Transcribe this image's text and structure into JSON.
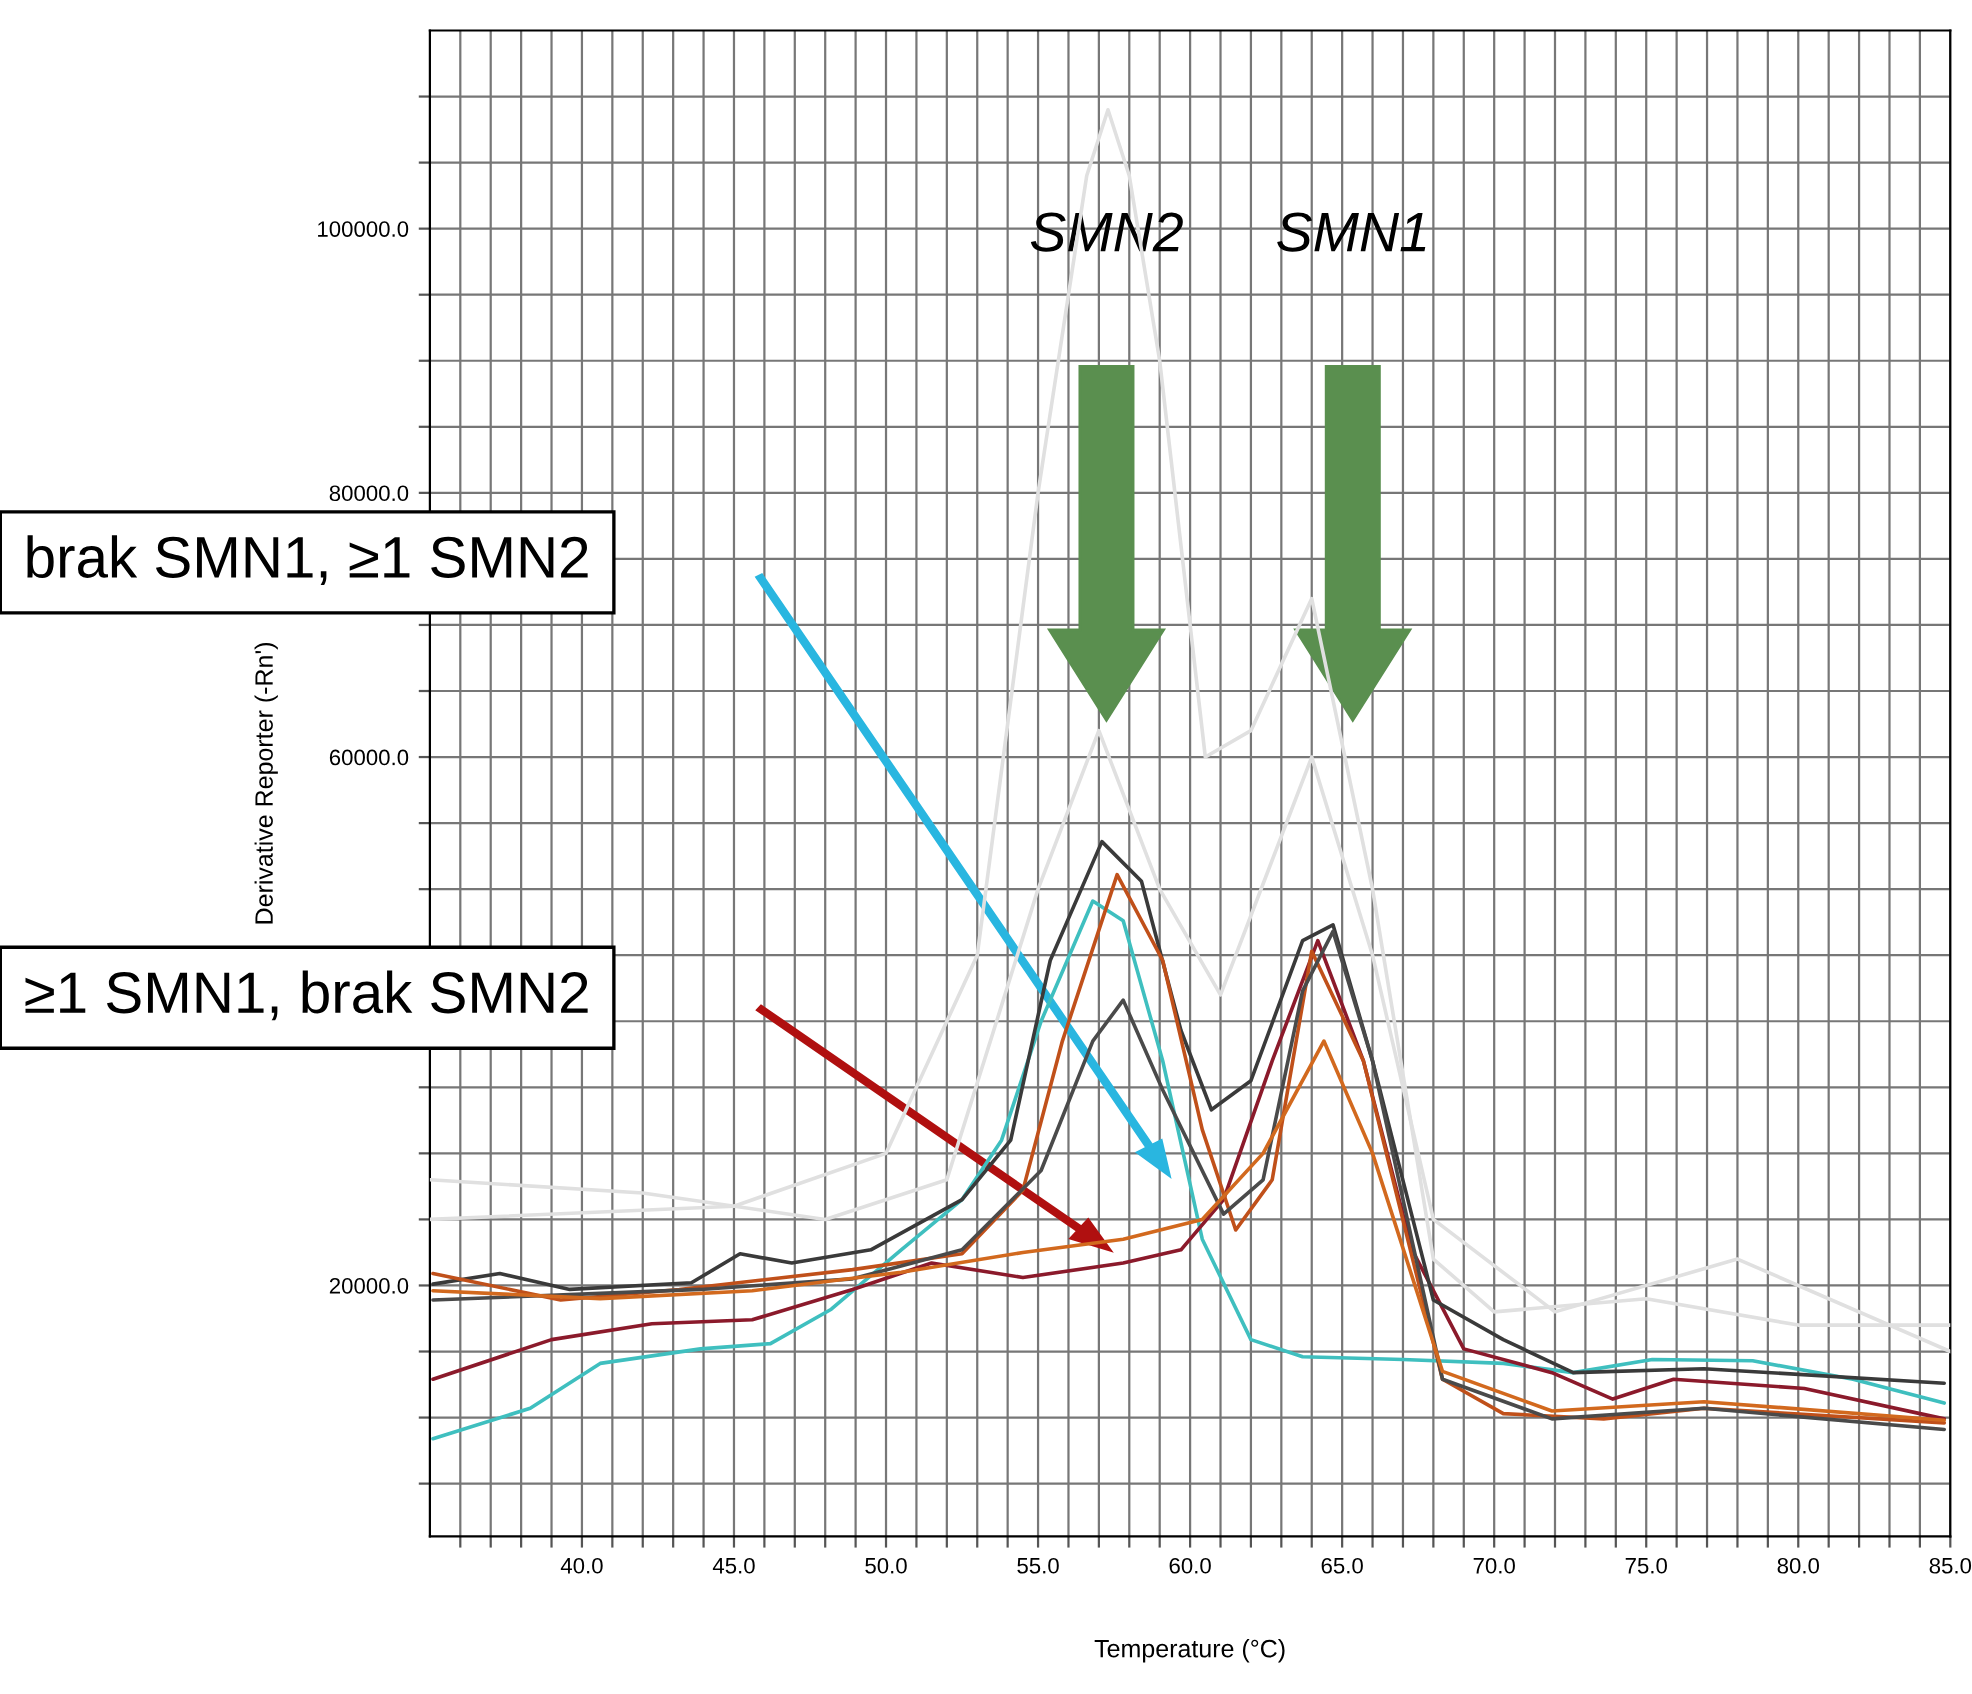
{
  "chart_data": {
    "type": "line",
    "xlabel": "Temperature (°C)",
    "ylabel": "Derivative Reporter (-Rn')",
    "xlim": [
      35,
      85
    ],
    "ylim": [
      1000,
      115000
    ],
    "xticks": [
      {
        "value": 36,
        "label": null
      },
      {
        "value": 37,
        "label": null
      },
      {
        "value": 38,
        "label": null
      },
      {
        "value": 39,
        "label": null
      },
      {
        "value": 40,
        "label": "40.0"
      },
      {
        "value": 41,
        "label": null
      },
      {
        "value": 42,
        "label": null
      },
      {
        "value": 43,
        "label": null
      },
      {
        "value": 44,
        "label": null
      },
      {
        "value": 45,
        "label": "45.0"
      },
      {
        "value": 46,
        "label": null
      },
      {
        "value": 47,
        "label": null
      },
      {
        "value": 48,
        "label": null
      },
      {
        "value": 49,
        "label": null
      },
      {
        "value": 50,
        "label": "50.0"
      },
      {
        "value": 51,
        "label": null
      },
      {
        "value": 52,
        "label": null
      },
      {
        "value": 53,
        "label": null
      },
      {
        "value": 54,
        "label": null
      },
      {
        "value": 55,
        "label": "55.0"
      },
      {
        "value": 56,
        "label": null
      },
      {
        "value": 57,
        "label": null
      },
      {
        "value": 58,
        "label": null
      },
      {
        "value": 59,
        "label": null
      },
      {
        "value": 60,
        "label": "60.0"
      },
      {
        "value": 61,
        "label": null
      },
      {
        "value": 62,
        "label": null
      },
      {
        "value": 63,
        "label": null
      },
      {
        "value": 64,
        "label": null
      },
      {
        "value": 65,
        "label": "65.0"
      },
      {
        "value": 66,
        "label": null
      },
      {
        "value": 67,
        "label": null
      },
      {
        "value": 68,
        "label": null
      },
      {
        "value": 69,
        "label": null
      },
      {
        "value": 70,
        "label": "70.0"
      },
      {
        "value": 71,
        "label": null
      },
      {
        "value": 72,
        "label": null
      },
      {
        "value": 73,
        "label": null
      },
      {
        "value": 74,
        "label": null
      },
      {
        "value": 75,
        "label": "75.0"
      },
      {
        "value": 76,
        "label": null
      },
      {
        "value": 77,
        "label": null
      },
      {
        "value": 78,
        "label": null
      },
      {
        "value": 79,
        "label": null
      },
      {
        "value": 80,
        "label": "80.0"
      },
      {
        "value": 81,
        "label": null
      },
      {
        "value": 82,
        "label": null
      },
      {
        "value": 83,
        "label": null
      },
      {
        "value": 84,
        "label": null
      },
      {
        "value": 85,
        "label": "85.0"
      }
    ],
    "yticks": [
      {
        "value": 5000,
        "label": null
      },
      {
        "value": 10000,
        "label": null
      },
      {
        "value": 15000,
        "label": null
      },
      {
        "value": 20000,
        "label": "20000.0"
      },
      {
        "value": 25000,
        "label": null
      },
      {
        "value": 30000,
        "label": null
      },
      {
        "value": 35000,
        "label": null
      },
      {
        "value": 40000,
        "label": null
      },
      {
        "value": 45000,
        "label": null
      },
      {
        "value": 50000,
        "label": null
      },
      {
        "value": 55000,
        "label": null
      },
      {
        "value": 60000,
        "label": "60000.0"
      },
      {
        "value": 65000,
        "label": null
      },
      {
        "value": 70000,
        "label": null
      },
      {
        "value": 75000,
        "label": null
      },
      {
        "value": 80000,
        "label": "80000.0"
      },
      {
        "value": 85000,
        "label": null
      },
      {
        "value": 90000,
        "label": null
      },
      {
        "value": 95000,
        "label": null
      },
      {
        "value": 100000,
        "label": "100000.0"
      },
      {
        "value": 105000,
        "label": null
      },
      {
        "value": 110000,
        "label": null
      }
    ],
    "grid": true,
    "series": [
      {
        "color": "#e0e0e0",
        "x": [
          35,
          45,
          50,
          53,
          55,
          56.6,
          57.3,
          58,
          59,
          60.5,
          62,
          64,
          66,
          68,
          70,
          75,
          80,
          85
        ],
        "values": [
          25000,
          26000,
          30000,
          45000,
          80000,
          104000,
          109000,
          104000,
          90000,
          60000,
          62000,
          72000,
          50000,
          22000,
          18000,
          19000,
          17000,
          17000
        ]
      },
      {
        "color": "#e0e0e0",
        "x": [
          35,
          42,
          48,
          52,
          55,
          57,
          59,
          61,
          64,
          66,
          68,
          72,
          78,
          85
        ],
        "values": [
          28000,
          27000,
          25000,
          28000,
          50000,
          62000,
          50000,
          42000,
          60000,
          45000,
          25000,
          18000,
          22000,
          15000
        ]
      },
      {
        "color": "#3fbfbf",
        "x": [
          35.1,
          38.3,
          40.6,
          43.9,
          46.2,
          48.2,
          50.5,
          52.5,
          53.8,
          55.1,
          56.8,
          57.8,
          59.1,
          60.4,
          62.0,
          63.7,
          67.0,
          70.3,
          72.6,
          75.2,
          78.5,
          81.8,
          84.8
        ],
        "values": [
          8400,
          10700,
          14100,
          15200,
          15600,
          18200,
          22700,
          26500,
          31000,
          40000,
          49100,
          47600,
          37000,
          23500,
          15900,
          14600,
          14400,
          14100,
          13400,
          14400,
          14300,
          12900,
          11100
        ]
      },
      {
        "color": "#8b1a2b",
        "x": [
          35.1,
          39.0,
          42.3,
          45.6,
          48.9,
          51.5,
          54.5,
          57.8,
          59.7,
          61.1,
          62.7,
          64.2,
          65.7,
          67.3,
          69.0,
          71.9,
          73.9,
          75.9,
          80.2,
          84.8
        ],
        "values": [
          12900,
          15900,
          17100,
          17400,
          19700,
          21700,
          20600,
          21700,
          22700,
          26500,
          37000,
          46100,
          37000,
          22700,
          15200,
          13400,
          11400,
          12900,
          12200,
          9900
        ]
      },
      {
        "color": "#3a3a3a",
        "x": [
          35.1,
          37.3,
          39.6,
          43.6,
          45.2,
          46.9,
          49.5,
          52.5,
          54.1,
          55.4,
          57.1,
          58.4,
          59.7,
          60.7,
          62.0,
          63.7,
          64.7,
          66.0,
          68.0,
          70.3,
          72.6,
          76.9,
          84.8
        ],
        "values": [
          20100,
          20900,
          19700,
          20200,
          22400,
          21700,
          22700,
          26500,
          31000,
          44600,
          53600,
          50600,
          39300,
          33300,
          35500,
          46100,
          47300,
          37000,
          18900,
          15900,
          13400,
          13700,
          12600
        ]
      },
      {
        "color": "#c0501a",
        "x": [
          35.1,
          39.3,
          43.2,
          48.9,
          52.5,
          54.5,
          55.8,
          57.6,
          59.1,
          60.4,
          61.5,
          62.7,
          64.0,
          65.7,
          68.3,
          70.3,
          73.6,
          76.9,
          84.8
        ],
        "values": [
          20900,
          18900,
          19700,
          21200,
          22400,
          27200,
          38500,
          51100,
          44600,
          31800,
          24200,
          28000,
          45300,
          37000,
          12900,
          10300,
          9900,
          10700,
          9600
        ]
      },
      {
        "color": "#4a4a4a",
        "x": [
          35.1,
          40.6,
          43.9,
          48.9,
          52.5,
          55.1,
          56.8,
          57.8,
          59.1,
          61.1,
          62.4,
          63.7,
          64.7,
          66.0,
          68.3,
          71.9,
          76.9,
          84.8
        ],
        "values": [
          18900,
          19400,
          19700,
          20500,
          22700,
          28700,
          38500,
          41600,
          34800,
          25400,
          28000,
          42300,
          46800,
          37000,
          12900,
          9900,
          10700,
          9100
        ]
      },
      {
        "color": "#d2691e",
        "x": [
          35.1,
          40.6,
          45.6,
          50.5,
          54.5,
          57.8,
          60.4,
          62.4,
          64.4,
          66.0,
          68.3,
          71.9,
          76.9,
          84.8
        ],
        "values": [
          19600,
          19000,
          19600,
          21000,
          22500,
          23500,
          25000,
          30000,
          38500,
          30000,
          13500,
          10500,
          11200,
          9800
        ]
      }
    ],
    "annotations": [
      "SMN2",
      "SMN1",
      "brak SMN1, ≥1 SMN2",
      "≥1 SMN1, brak SMN2"
    ]
  }
}
